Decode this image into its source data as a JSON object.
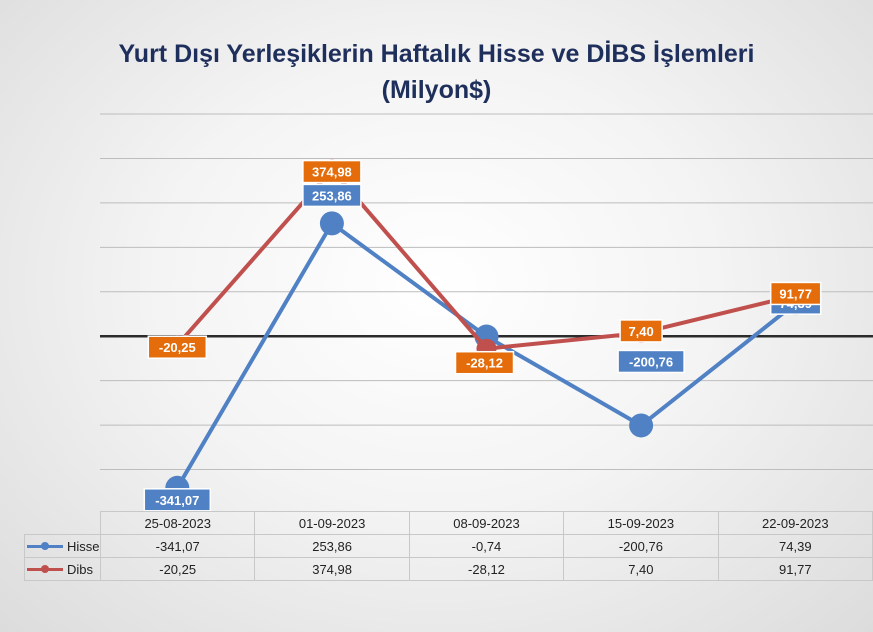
{
  "title_line1": "Yurt Dışı Yerleşiklerin Haftalık Hisse ve DİBS İşlemleri",
  "title_line2": "(Milyon$)",
  "chart_data": {
    "type": "line",
    "title": "Yurt Dışı Yerleşiklerin Haftalık Hisse ve DİBS İşlemleri (Milyon$)",
    "categories": [
      "25-08-2023",
      "01-09-2023",
      "08-09-2023",
      "15-09-2023",
      "22-09-2023"
    ],
    "ylim": [
      -400,
      500
    ],
    "grid": true,
    "legend": "table-bottom",
    "series": [
      {
        "name": "Hisse",
        "color": "#4f81c4",
        "values": [
          -341.07,
          253.86,
          -0.74,
          -200.76,
          74.39
        ],
        "labels": [
          "-341,07",
          "253,86",
          "-0,74",
          "-200,76",
          "74,39"
        ]
      },
      {
        "name": "Dibs",
        "color": "#c0504d",
        "values": [
          -20.25,
          374.98,
          -28.12,
          7.4,
          91.77
        ],
        "labels": [
          "-20,25",
          "374,98",
          "-28,12",
          "7,40",
          "91,77"
        ]
      }
    ]
  }
}
